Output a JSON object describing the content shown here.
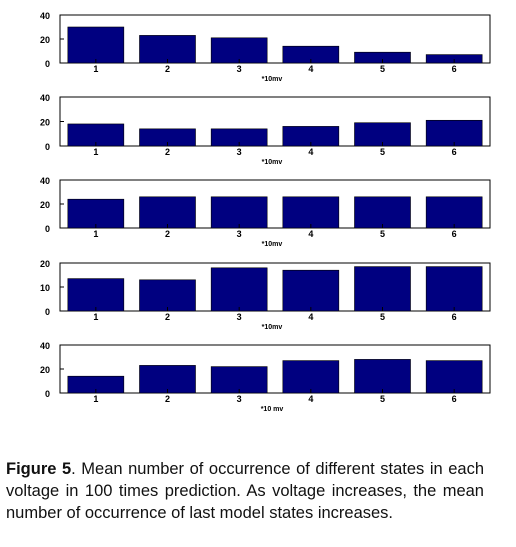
{
  "chart_data": [
    {
      "type": "bar",
      "categories": [
        "1",
        "2",
        "3",
        "4",
        "5",
        "6"
      ],
      "values": [
        30,
        23,
        21,
        14,
        9,
        7
      ],
      "ylim": [
        0,
        40
      ],
      "yticks": [
        "0",
        "20",
        "40"
      ],
      "xlabel": "*10mv",
      "bar_color": "#000080",
      "grid": false
    },
    {
      "type": "bar",
      "categories": [
        "1",
        "2",
        "3",
        "4",
        "5",
        "6"
      ],
      "values": [
        18,
        14,
        14,
        16,
        19,
        21
      ],
      "ylim": [
        0,
        40
      ],
      "yticks": [
        "0",
        "20",
        "40"
      ],
      "xlabel": "*10mv",
      "bar_color": "#000080",
      "grid": false
    },
    {
      "type": "bar",
      "categories": [
        "1",
        "2",
        "3",
        "4",
        "5",
        "6"
      ],
      "values": [
        24,
        26,
        26,
        26,
        26,
        26
      ],
      "ylim": [
        0,
        40
      ],
      "yticks": [
        "0",
        "20",
        "40"
      ],
      "xlabel": "*10mv",
      "bar_color": "#000080",
      "grid": false
    },
    {
      "type": "bar",
      "categories": [
        "1",
        "2",
        "3",
        "4",
        "5",
        "6"
      ],
      "values": [
        13.5,
        13,
        18,
        17,
        18.5,
        18.5
      ],
      "ylim": [
        0,
        20
      ],
      "yticks": [
        "0",
        "10",
        "20"
      ],
      "xlabel": "*10mv",
      "bar_color": "#000080",
      "grid": false
    },
    {
      "type": "bar",
      "categories": [
        "1",
        "2",
        "3",
        "4",
        "5",
        "6"
      ],
      "values": [
        14,
        23,
        22,
        27,
        28,
        27
      ],
      "ylim": [
        0,
        40
      ],
      "yticks": [
        "0",
        "20",
        "40"
      ],
      "xlabel": "*10 mv",
      "bar_color": "#000080",
      "grid": false
    }
  ],
  "caption": {
    "label": "Figure 5",
    "text": ". Mean number of occurrence of different states in each voltage in 100 times prediction. As voltage increases, the mean number of occurrence of last model states increases."
  }
}
